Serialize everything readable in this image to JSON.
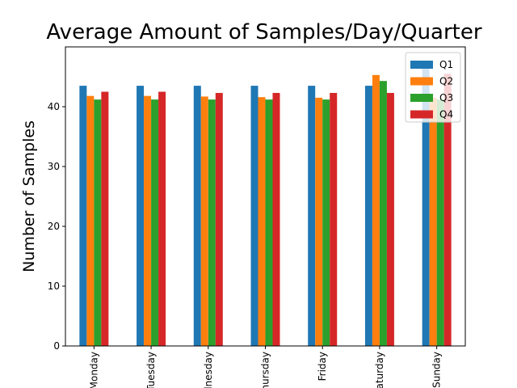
{
  "chart_data": {
    "type": "bar",
    "title": "Average Amount of Samples/Day/Quarter",
    "xlabel": "",
    "ylabel": "Number of Samples",
    "categories": [
      "Monday",
      "Tuesday",
      "Wednesday",
      "Thursday",
      "Friday",
      "Saturday",
      "Sunday"
    ],
    "ylim": [
      0,
      50
    ],
    "yticks": [
      "0",
      "10",
      "20",
      "30",
      "40"
    ],
    "grid": false,
    "legend_position": "top-right",
    "series": [
      {
        "name": "Q1",
        "color": "#1f77b4",
        "values": [
          43.5,
          43.5,
          43.5,
          43.5,
          43.5,
          43.5,
          47.5
        ]
      },
      {
        "name": "Q2",
        "color": "#ff7f0e",
        "values": [
          41.8,
          41.8,
          41.7,
          41.6,
          41.5,
          45.3,
          41.5
        ]
      },
      {
        "name": "Q3",
        "color": "#2ca02c",
        "values": [
          41.2,
          41.2,
          41.2,
          41.2,
          41.2,
          44.3,
          41.2
        ]
      },
      {
        "name": "Q4",
        "color": "#d62728",
        "values": [
          42.5,
          42.5,
          42.3,
          42.3,
          42.3,
          42.3,
          45.5
        ]
      }
    ]
  }
}
